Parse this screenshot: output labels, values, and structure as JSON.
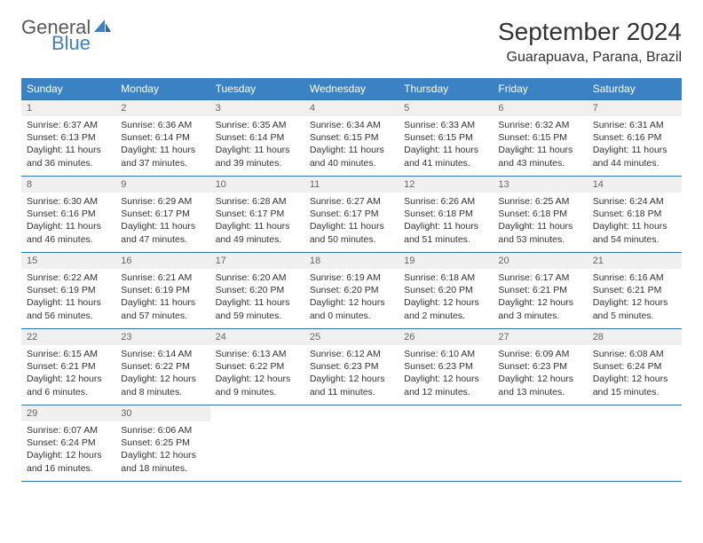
{
  "logo": {
    "general": "General",
    "blue": "Blue"
  },
  "title": "September 2024",
  "location": "Guarapuava, Parana, Brazil",
  "colors": {
    "header_bg": "#3b82c4",
    "header_text": "#ffffff",
    "border": "#3b6fa0",
    "daynum_bg": "#f0f0f0",
    "text": "#333333",
    "logo_gray": "#5a5a5a",
    "logo_blue": "#3b82c4",
    "page_bg": "#ffffff"
  },
  "dow": [
    "Sunday",
    "Monday",
    "Tuesday",
    "Wednesday",
    "Thursday",
    "Friday",
    "Saturday"
  ],
  "weeks": [
    [
      {
        "n": "1",
        "sr": "Sunrise: 6:37 AM",
        "ss": "Sunset: 6:13 PM",
        "d1": "Daylight: 11 hours",
        "d2": "and 36 minutes."
      },
      {
        "n": "2",
        "sr": "Sunrise: 6:36 AM",
        "ss": "Sunset: 6:14 PM",
        "d1": "Daylight: 11 hours",
        "d2": "and 37 minutes."
      },
      {
        "n": "3",
        "sr": "Sunrise: 6:35 AM",
        "ss": "Sunset: 6:14 PM",
        "d1": "Daylight: 11 hours",
        "d2": "and 39 minutes."
      },
      {
        "n": "4",
        "sr": "Sunrise: 6:34 AM",
        "ss": "Sunset: 6:15 PM",
        "d1": "Daylight: 11 hours",
        "d2": "and 40 minutes."
      },
      {
        "n": "5",
        "sr": "Sunrise: 6:33 AM",
        "ss": "Sunset: 6:15 PM",
        "d1": "Daylight: 11 hours",
        "d2": "and 41 minutes."
      },
      {
        "n": "6",
        "sr": "Sunrise: 6:32 AM",
        "ss": "Sunset: 6:15 PM",
        "d1": "Daylight: 11 hours",
        "d2": "and 43 minutes."
      },
      {
        "n": "7",
        "sr": "Sunrise: 6:31 AM",
        "ss": "Sunset: 6:16 PM",
        "d1": "Daylight: 11 hours",
        "d2": "and 44 minutes."
      }
    ],
    [
      {
        "n": "8",
        "sr": "Sunrise: 6:30 AM",
        "ss": "Sunset: 6:16 PM",
        "d1": "Daylight: 11 hours",
        "d2": "and 46 minutes."
      },
      {
        "n": "9",
        "sr": "Sunrise: 6:29 AM",
        "ss": "Sunset: 6:17 PM",
        "d1": "Daylight: 11 hours",
        "d2": "and 47 minutes."
      },
      {
        "n": "10",
        "sr": "Sunrise: 6:28 AM",
        "ss": "Sunset: 6:17 PM",
        "d1": "Daylight: 11 hours",
        "d2": "and 49 minutes."
      },
      {
        "n": "11",
        "sr": "Sunrise: 6:27 AM",
        "ss": "Sunset: 6:17 PM",
        "d1": "Daylight: 11 hours",
        "d2": "and 50 minutes."
      },
      {
        "n": "12",
        "sr": "Sunrise: 6:26 AM",
        "ss": "Sunset: 6:18 PM",
        "d1": "Daylight: 11 hours",
        "d2": "and 51 minutes."
      },
      {
        "n": "13",
        "sr": "Sunrise: 6:25 AM",
        "ss": "Sunset: 6:18 PM",
        "d1": "Daylight: 11 hours",
        "d2": "and 53 minutes."
      },
      {
        "n": "14",
        "sr": "Sunrise: 6:24 AM",
        "ss": "Sunset: 6:18 PM",
        "d1": "Daylight: 11 hours",
        "d2": "and 54 minutes."
      }
    ],
    [
      {
        "n": "15",
        "sr": "Sunrise: 6:22 AM",
        "ss": "Sunset: 6:19 PM",
        "d1": "Daylight: 11 hours",
        "d2": "and 56 minutes."
      },
      {
        "n": "16",
        "sr": "Sunrise: 6:21 AM",
        "ss": "Sunset: 6:19 PM",
        "d1": "Daylight: 11 hours",
        "d2": "and 57 minutes."
      },
      {
        "n": "17",
        "sr": "Sunrise: 6:20 AM",
        "ss": "Sunset: 6:20 PM",
        "d1": "Daylight: 11 hours",
        "d2": "and 59 minutes."
      },
      {
        "n": "18",
        "sr": "Sunrise: 6:19 AM",
        "ss": "Sunset: 6:20 PM",
        "d1": "Daylight: 12 hours",
        "d2": "and 0 minutes."
      },
      {
        "n": "19",
        "sr": "Sunrise: 6:18 AM",
        "ss": "Sunset: 6:20 PM",
        "d1": "Daylight: 12 hours",
        "d2": "and 2 minutes."
      },
      {
        "n": "20",
        "sr": "Sunrise: 6:17 AM",
        "ss": "Sunset: 6:21 PM",
        "d1": "Daylight: 12 hours",
        "d2": "and 3 minutes."
      },
      {
        "n": "21",
        "sr": "Sunrise: 6:16 AM",
        "ss": "Sunset: 6:21 PM",
        "d1": "Daylight: 12 hours",
        "d2": "and 5 minutes."
      }
    ],
    [
      {
        "n": "22",
        "sr": "Sunrise: 6:15 AM",
        "ss": "Sunset: 6:21 PM",
        "d1": "Daylight: 12 hours",
        "d2": "and 6 minutes."
      },
      {
        "n": "23",
        "sr": "Sunrise: 6:14 AM",
        "ss": "Sunset: 6:22 PM",
        "d1": "Daylight: 12 hours",
        "d2": "and 8 minutes."
      },
      {
        "n": "24",
        "sr": "Sunrise: 6:13 AM",
        "ss": "Sunset: 6:22 PM",
        "d1": "Daylight: 12 hours",
        "d2": "and 9 minutes."
      },
      {
        "n": "25",
        "sr": "Sunrise: 6:12 AM",
        "ss": "Sunset: 6:23 PM",
        "d1": "Daylight: 12 hours",
        "d2": "and 11 minutes."
      },
      {
        "n": "26",
        "sr": "Sunrise: 6:10 AM",
        "ss": "Sunset: 6:23 PM",
        "d1": "Daylight: 12 hours",
        "d2": "and 12 minutes."
      },
      {
        "n": "27",
        "sr": "Sunrise: 6:09 AM",
        "ss": "Sunset: 6:23 PM",
        "d1": "Daylight: 12 hours",
        "d2": "and 13 minutes."
      },
      {
        "n": "28",
        "sr": "Sunrise: 6:08 AM",
        "ss": "Sunset: 6:24 PM",
        "d1": "Daylight: 12 hours",
        "d2": "and 15 minutes."
      }
    ],
    [
      {
        "n": "29",
        "sr": "Sunrise: 6:07 AM",
        "ss": "Sunset: 6:24 PM",
        "d1": "Daylight: 12 hours",
        "d2": "and 16 minutes."
      },
      {
        "n": "30",
        "sr": "Sunrise: 6:06 AM",
        "ss": "Sunset: 6:25 PM",
        "d1": "Daylight: 12 hours",
        "d2": "and 18 minutes."
      },
      {
        "empty": true
      },
      {
        "empty": true
      },
      {
        "empty": true
      },
      {
        "empty": true
      },
      {
        "empty": true
      }
    ]
  ]
}
